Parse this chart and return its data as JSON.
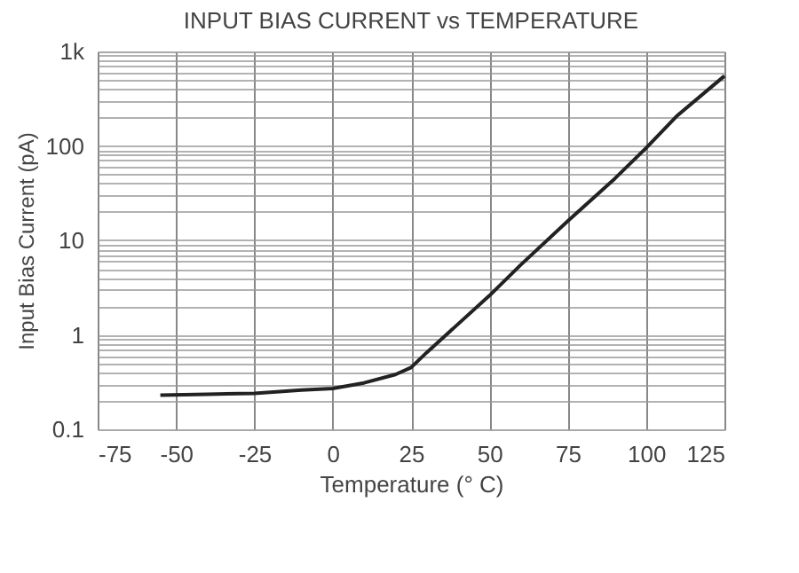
{
  "chart_data": {
    "type": "line",
    "title": "INPUT BIAS CURRENT  vs TEMPERATURE",
    "xlabel": "Temperature (° C)",
    "ylabel": "Input Bias Current (pA)",
    "x": [
      -55,
      -40,
      -25,
      -10,
      0,
      10,
      20,
      25,
      30,
      40,
      50,
      60,
      75,
      90,
      100,
      110,
      125
    ],
    "series": [
      {
        "color": "#222222",
        "values": [
          0.23,
          0.235,
          0.24,
          0.26,
          0.27,
          0.31,
          0.38,
          0.45,
          0.65,
          1.3,
          2.6,
          5.5,
          16,
          45,
          95,
          210,
          550
        ]
      }
    ],
    "xlim": [
      -75,
      125
    ],
    "xticks": [
      -75,
      -50,
      -25,
      0,
      25,
      50,
      75,
      100,
      125
    ],
    "ylim": [
      0.1,
      1000
    ],
    "log": true,
    "yticks": [
      0.1,
      {
        "value": 0.2,
        "label": null
      },
      {
        "value": 0.3,
        "label": null
      },
      {
        "value": 0.4,
        "label": null
      },
      {
        "value": 0.5,
        "label": null
      },
      {
        "value": 0.6,
        "label": null
      },
      {
        "value": 0.7,
        "label": null
      },
      {
        "value": 0.8,
        "label": null
      },
      {
        "value": 0.9,
        "label": null
      },
      1,
      {
        "value": 2,
        "label": null
      },
      {
        "value": 3,
        "label": null
      },
      {
        "value": 4,
        "label": null
      },
      {
        "value": 5,
        "label": null
      },
      {
        "value": 6,
        "label": null
      },
      {
        "value": 7,
        "label": null
      },
      {
        "value": 8,
        "label": null
      },
      {
        "value": 9,
        "label": null
      },
      10,
      {
        "value": 20,
        "label": null
      },
      {
        "value": 30,
        "label": null
      },
      {
        "value": 40,
        "label": null
      },
      {
        "value": 50,
        "label": null
      },
      {
        "value": 60,
        "label": null
      },
      {
        "value": 70,
        "label": null
      },
      {
        "value": 80,
        "label": null
      },
      {
        "value": 90,
        "label": null
      },
      100,
      {
        "value": 200,
        "label": null
      },
      {
        "value": 300,
        "label": null
      },
      {
        "value": 400,
        "label": null
      },
      {
        "value": 500,
        "label": null
      },
      {
        "value": 600,
        "label": null
      },
      {
        "value": 700,
        "label": null
      },
      {
        "value": 800,
        "label": null
      },
      {
        "value": 900,
        "label": null
      },
      {
        "value": 1000,
        "label": "1k"
      }
    ],
    "grid": true,
    "marker": "none",
    "line_style": "solid"
  }
}
